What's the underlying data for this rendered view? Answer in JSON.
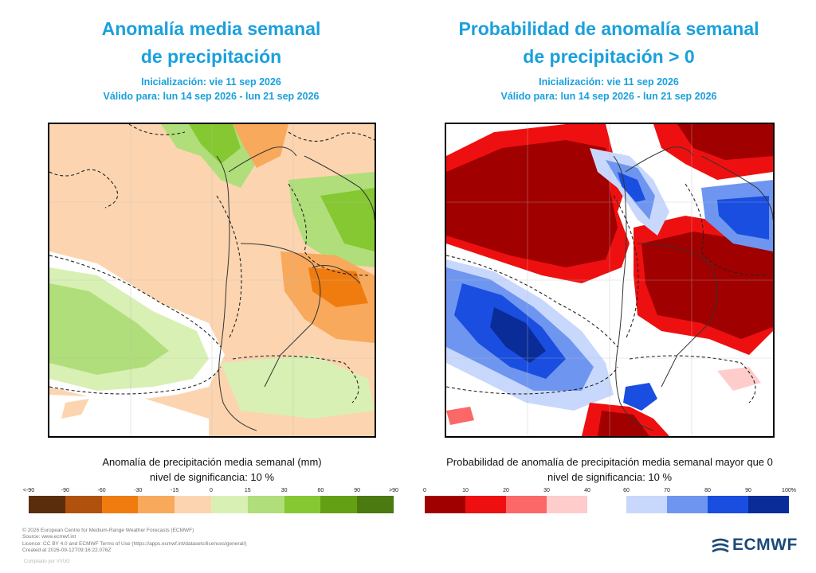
{
  "left": {
    "title_line1": "Anomalía media semanal",
    "title_line2": "de precipitación",
    "init": "Inicialización: vie 11 sep 2026",
    "valid": "Válido para: lun 14 sep 2026 - lun 21 sep 2026",
    "caption": "Anomalía de precipitación media semanal (mm)",
    "significance": "nivel de significancia: 10 %",
    "colorbar": {
      "colors": [
        "#5a2d0c",
        "#b0520d",
        "#f07c10",
        "#f8a95c",
        "#fcd5b0",
        "#d8f0b4",
        "#b0de7a",
        "#85c832",
        "#64a014",
        "#4a7a10"
      ],
      "ticks": [
        "<-90",
        "-90",
        "-60",
        "-30",
        "-15",
        "0",
        "15",
        "30",
        "60",
        "90",
        ">90"
      ]
    }
  },
  "right": {
    "title_line1": "Probabilidad de anomalía semanal",
    "title_line2": "de precipitación > 0",
    "init": "Inicialización: vie 11 sep 2026",
    "valid": "Válido para: lun 14 sep 2026 - lun 21 sep 2026",
    "caption": "Probabilidad de anomalía de precipitación media semanal mayor que 0",
    "significance": "nivel de significancia: 10 %",
    "colorbar_low": {
      "colors": [
        "#a00000",
        "#ee1010",
        "#fc6868",
        "#ffcccc"
      ],
      "ticks": [
        "0",
        "10",
        "20",
        "30",
        "40"
      ]
    },
    "colorbar_high": {
      "colors": [
        "#c8d8fc",
        "#6e96f0",
        "#1a4ee0",
        "#0a2c98"
      ],
      "ticks": [
        "60",
        "70",
        "80",
        "90",
        "100%"
      ]
    }
  },
  "footer": {
    "line1": "© 2026 European Centre for Medium-Range Weather Forecasts (ECMWF)",
    "line2": "Source: www.ecmwf.int",
    "line3": "Licence: CC BY 4.0 and ECMWF Terms of Use (https://apps.ecmwf.int/datasets/licences/general/)",
    "line4": "Created at 2026-09-12T09:16:22.076Z",
    "compiled": "Compilado por VVUG",
    "logo": "ECMWF"
  },
  "colors": {
    "title": "#1aa0dc",
    "logo": "#1b4a7a"
  }
}
